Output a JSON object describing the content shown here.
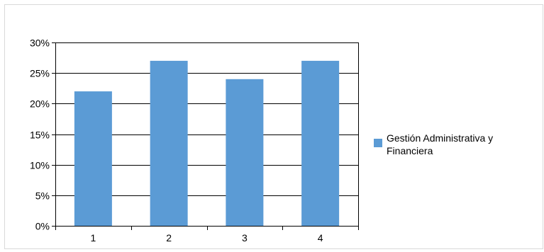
{
  "chart_data": {
    "type": "bar",
    "categories": [
      "1",
      "2",
      "3",
      "4"
    ],
    "series": [
      {
        "name": "Gestión Administrativa y Financiera",
        "values": [
          0.22,
          0.27,
          0.24,
          0.27
        ],
        "color": "#5b9bd5"
      }
    ],
    "ylim": [
      0,
      0.3
    ],
    "yticks": [
      0,
      0.05,
      0.1,
      0.15,
      0.2,
      0.25,
      0.3
    ],
    "ytick_labels": [
      "0%",
      "5%",
      "10%",
      "15%",
      "20%",
      "25%",
      "30%"
    ],
    "grid": true,
    "legend_position": "right",
    "legend_lines": [
      "Gestión Administrativa y",
      "Financiera"
    ]
  }
}
